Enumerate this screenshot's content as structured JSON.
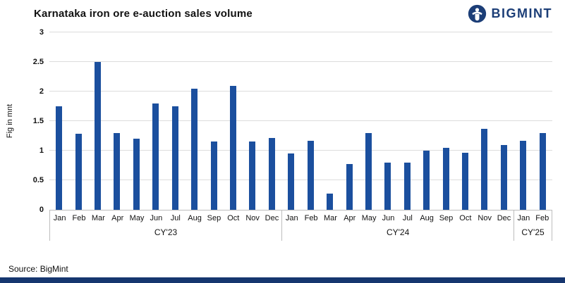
{
  "brand": {
    "name": "BIGMINT",
    "color": "#1c3e77"
  },
  "source_label": "Source: BigMint",
  "chart_data": {
    "type": "bar",
    "title": "Karnataka iron ore e-auction sales volume",
    "xlabel": "",
    "ylabel": "Fig in mnt",
    "ylim": [
      0,
      3
    ],
    "yticks": [
      0,
      0.5,
      1,
      1.5,
      2,
      2.5,
      3
    ],
    "grid": "horizontal",
    "legend": "none",
    "bar_color": "#1b4f9e",
    "groups": [
      {
        "label": "CY'23",
        "categories": [
          "Jan",
          "Feb",
          "Mar",
          "Apr",
          "May",
          "Jun",
          "Jul",
          "Aug",
          "Sep",
          "Oct",
          "Nov",
          "Dec"
        ],
        "values": [
          1.75,
          1.28,
          2.5,
          1.3,
          1.2,
          1.8,
          1.75,
          2.05,
          1.15,
          2.1,
          1.15,
          1.22
        ]
      },
      {
        "label": "CY'24",
        "categories": [
          "Jan",
          "Feb",
          "Mar",
          "Apr",
          "May",
          "Jun",
          "Jul",
          "Aug",
          "Sep",
          "Oct",
          "Nov",
          "Dec"
        ],
        "values": [
          0.95,
          1.17,
          0.27,
          0.77,
          1.3,
          0.8,
          0.8,
          1.0,
          1.05,
          0.97,
          1.37,
          1.1
        ]
      },
      {
        "label": "CY'25",
        "categories": [
          "Jan",
          "Feb"
        ],
        "values": [
          1.17,
          1.3
        ]
      }
    ]
  }
}
